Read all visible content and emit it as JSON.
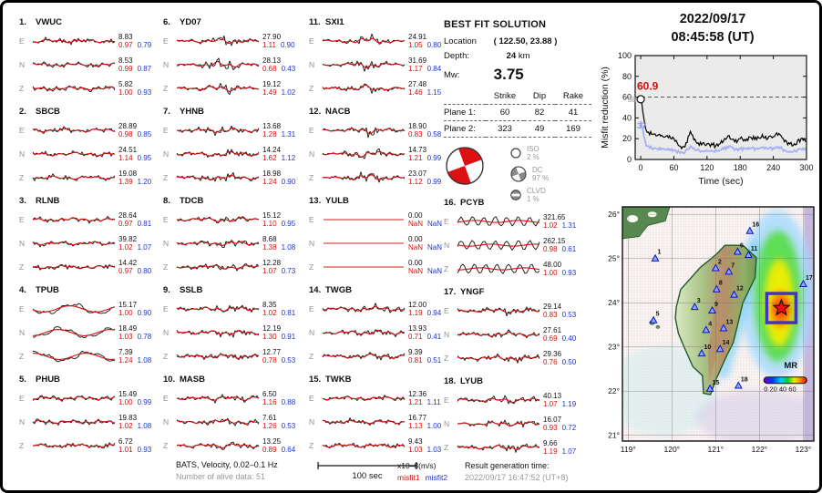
{
  "header": {
    "date": "2022/09/17",
    "time": "08:45:58  (UT)"
  },
  "stations": [
    {
      "num": "1.",
      "name": "VWUC",
      "channels": [
        {
          "ch": "E",
          "amp": "8.83",
          "m1": "0.97",
          "m2": "0.79"
        },
        {
          "ch": "N",
          "amp": "8.53",
          "m1": "0.99",
          "m2": "0.87"
        },
        {
          "ch": "Z",
          "amp": "5.82",
          "m1": "1.00",
          "m2": "0.93"
        }
      ]
    },
    {
      "num": "2.",
      "name": "SBCB",
      "channels": [
        {
          "ch": "E",
          "amp": "28.89",
          "m1": "0.98",
          "m2": "0.85"
        },
        {
          "ch": "N",
          "amp": "24.51",
          "m1": "1.14",
          "m2": "0.95"
        },
        {
          "ch": "Z",
          "amp": "19.08",
          "m1": "1.39",
          "m2": "1.20"
        }
      ]
    },
    {
      "num": "3.",
      "name": "RLNB",
      "channels": [
        {
          "ch": "E",
          "amp": "28.64",
          "m1": "0.97",
          "m2": "0.81"
        },
        {
          "ch": "N",
          "amp": "39.82",
          "m1": "1.02",
          "m2": "1.07"
        },
        {
          "ch": "Z",
          "amp": "14.42",
          "m1": "0.97",
          "m2": "0.80"
        }
      ]
    },
    {
      "num": "4.",
      "name": "TPUB",
      "channels": [
        {
          "ch": "E",
          "amp": "15.17",
          "m1": "1.00",
          "m2": "0.90"
        },
        {
          "ch": "N",
          "amp": "18.49",
          "m1": "1.03",
          "m2": "0.78"
        },
        {
          "ch": "Z",
          "amp": "7.39",
          "m1": "1.24",
          "m2": "1.08"
        }
      ]
    },
    {
      "num": "5.",
      "name": "PHUB",
      "channels": [
        {
          "ch": "E",
          "amp": "15.49",
          "m1": "1.00",
          "m2": "0.99"
        },
        {
          "ch": "N",
          "amp": "19.83",
          "m1": "1.02",
          "m2": "1.08"
        },
        {
          "ch": "Z",
          "amp": "6.72",
          "m1": "1.01",
          "m2": "0.93"
        }
      ]
    },
    {
      "num": "6.",
      "name": "YD07",
      "channels": [
        {
          "ch": "E",
          "amp": "27.90",
          "m1": "1.11",
          "m2": "0.90"
        },
        {
          "ch": "N",
          "amp": "28.13",
          "m1": "0.68",
          "m2": "0.43"
        },
        {
          "ch": "Z",
          "amp": "19.12",
          "m1": "1.49",
          "m2": "1.02"
        }
      ]
    },
    {
      "num": "7.",
      "name": "YHNB",
      "channels": [
        {
          "ch": "E",
          "amp": "13.68",
          "m1": "1.28",
          "m2": "1.31"
        },
        {
          "ch": "N",
          "amp": "14.24",
          "m1": "1.62",
          "m2": "1.12"
        },
        {
          "ch": "Z",
          "amp": "18.98",
          "m1": "1.24",
          "m2": "0.90"
        }
      ]
    },
    {
      "num": "8.",
      "name": "TDCB",
      "channels": [
        {
          "ch": "E",
          "amp": "15.12",
          "m1": "1.10",
          "m2": "0.95"
        },
        {
          "ch": "N",
          "amp": "8.68",
          "m1": "1.38",
          "m2": "1.08"
        },
        {
          "ch": "Z",
          "amp": "12.28",
          "m1": "1.07",
          "m2": "0.73"
        }
      ]
    },
    {
      "num": "9.",
      "name": "SSLB",
      "channels": [
        {
          "ch": "E",
          "amp": "8.35",
          "m1": "1.02",
          "m2": "0.81"
        },
        {
          "ch": "N",
          "amp": "12.19",
          "m1": "1.30",
          "m2": "0.91"
        },
        {
          "ch": "Z",
          "amp": "12.77",
          "m1": "0.78",
          "m2": "0.53"
        }
      ]
    },
    {
      "num": "10.",
      "name": "MASB",
      "channels": [
        {
          "ch": "E",
          "amp": "6.50",
          "m1": "1.16",
          "m2": "0.88"
        },
        {
          "ch": "N",
          "amp": "7.61",
          "m1": "1.26",
          "m2": "0.53"
        },
        {
          "ch": "Z",
          "amp": "13.25",
          "m1": "0.89",
          "m2": "0.64"
        }
      ]
    },
    {
      "num": "11.",
      "name": "SXI1",
      "channels": [
        {
          "ch": "E",
          "amp": "24.91",
          "m1": "1.05",
          "m2": "0.80"
        },
        {
          "ch": "N",
          "amp": "31.69",
          "m1": "1.17",
          "m2": "0.84"
        },
        {
          "ch": "Z",
          "amp": "27.48",
          "m1": "1.46",
          "m2": "1.15"
        }
      ]
    },
    {
      "num": "12.",
      "name": "NACB",
      "channels": [
        {
          "ch": "E",
          "amp": "18.90",
          "m1": "0.83",
          "m2": "0.58"
        },
        {
          "ch": "N",
          "amp": "14.73",
          "m1": "1.21",
          "m2": "0.99"
        },
        {
          "ch": "Z",
          "amp": "23.07",
          "m1": "1.12",
          "m2": "0.99"
        }
      ]
    },
    {
      "num": "13.",
      "name": "YULB",
      "channels": [
        {
          "ch": "E",
          "amp": "0.00",
          "m1": "NaN",
          "m2": "NaN"
        },
        {
          "ch": "N",
          "amp": "0.00",
          "m1": "NaN",
          "m2": "NaN"
        },
        {
          "ch": "Z",
          "amp": "0.00",
          "m1": "NaN",
          "m2": "NaN"
        }
      ]
    },
    {
      "num": "14.",
      "name": "TWGB",
      "channels": [
        {
          "ch": "E",
          "amp": "12.00",
          "m1": "1.19",
          "m2": "0.94"
        },
        {
          "ch": "N",
          "amp": "13.93",
          "m1": "0.71",
          "m2": "0.41"
        },
        {
          "ch": "Z",
          "amp": "9.39",
          "m1": "0.81",
          "m2": "0.51"
        }
      ]
    },
    {
      "num": "15.",
      "name": "TWKB",
      "channels": [
        {
          "ch": "E",
          "amp": "12.36",
          "m1": "1.21",
          "m2": "1.11"
        },
        {
          "ch": "N",
          "amp": "16.77",
          "m1": "1.13",
          "m2": "1.00"
        },
        {
          "ch": "Z",
          "amp": "9.43",
          "m1": "1.03",
          "m2": "1.03"
        }
      ]
    },
    {
      "num": "16.",
      "name": "PCYB",
      "channels": [
        {
          "ch": "E",
          "amp": "321.65",
          "m1": "1.02",
          "m2": "1.31"
        },
        {
          "ch": "N",
          "amp": "262.15",
          "m1": "0.98",
          "m2": "0.61"
        },
        {
          "ch": "Z",
          "amp": "48.00",
          "m1": "1.00",
          "m2": "0.93"
        }
      ]
    },
    {
      "num": "17.",
      "name": "YNGF",
      "channels": [
        {
          "ch": "E",
          "amp": "29.14",
          "m1": "0.83",
          "m2": "0.53"
        },
        {
          "ch": "N",
          "amp": "27.61",
          "m1": "0.69",
          "m2": "0.40"
        },
        {
          "ch": "Z",
          "amp": "29.36",
          "m1": "0.76",
          "m2": "0.50"
        }
      ]
    },
    {
      "num": "18.",
      "name": "LYUB",
      "channels": [
        {
          "ch": "E",
          "amp": "40.13",
          "m1": "1.07",
          "m2": "1.19"
        },
        {
          "ch": "N",
          "amp": "16.07",
          "m1": "0.93",
          "m2": "0.72"
        },
        {
          "ch": "Z",
          "amp": "9.66",
          "m1": "1.19",
          "m2": "1.07"
        }
      ]
    }
  ],
  "best_fit": {
    "title": "BEST FIT SOLUTION",
    "location_label": "Location",
    "location_value": "( 122.50,  23.88 )",
    "depth_label": "Depth:",
    "depth_value": "24",
    "depth_unit": "km",
    "mw_label": "Mw:",
    "mw_value": "3.75",
    "table_headers": {
      "strike": "Strike",
      "dip": "Dip",
      "rake": "Rake"
    },
    "planes": [
      {
        "label": "Plane 1:",
        "strike": "60",
        "dip": "82",
        "rake": "41"
      },
      {
        "label": "Plane 2:",
        "strike": "323",
        "dip": "49",
        "rake": "169"
      }
    ],
    "decomposition": [
      {
        "name": "ISO",
        "pct": "2 %"
      },
      {
        "name": "DC",
        "pct": "97 %"
      },
      {
        "name": "CLVD",
        "pct": "1 %"
      }
    ]
  },
  "chart_data": {
    "type": "line",
    "title": "",
    "xlabel": "Time (sec)",
    "ylabel": "Misfit reduction (%)",
    "xlim": [
      -10,
      300
    ],
    "ylim": [
      0,
      100
    ],
    "yticks": [
      0,
      20,
      40,
      60,
      80,
      100
    ],
    "xticks": [
      0,
      60,
      120,
      180,
      240,
      300
    ],
    "dashed_line_y": 60,
    "x": [
      0,
      10,
      20,
      30,
      40,
      50,
      60,
      70,
      80,
      90,
      100,
      110,
      120,
      130,
      140,
      150,
      160,
      170,
      180,
      190,
      200,
      210,
      220,
      230,
      240,
      250,
      260,
      270,
      280,
      290,
      300
    ],
    "series": [
      {
        "name": "misfit1",
        "color": "#000000",
        "values": [
          58,
          28,
          24,
          23,
          22,
          21,
          20,
          13,
          12,
          27,
          17,
          14,
          15,
          14,
          13,
          18,
          23,
          17,
          20,
          18,
          21,
          19,
          24,
          20,
          22,
          25,
          17,
          15,
          14,
          20,
          17
        ]
      },
      {
        "name": "misfit2",
        "color": "#a9b0f2",
        "values": [
          37,
          13,
          11,
          10,
          10,
          9,
          9,
          7,
          7,
          13,
          9,
          8,
          8,
          8,
          8,
          10,
          13,
          9,
          10,
          10,
          11,
          10,
          12,
          10,
          11,
          12,
          9,
          8,
          8,
          10,
          9
        ]
      }
    ],
    "annotations": {
      "peak": "60.9",
      "black_start": "58",
      "blue_start": "37"
    }
  },
  "map": {
    "lat_labels": [
      {
        "v": 26,
        "t": "26°"
      },
      {
        "v": 25,
        "t": "25°"
      },
      {
        "v": 24,
        "t": "24°"
      },
      {
        "v": 23,
        "t": "23°"
      },
      {
        "v": 22,
        "t": "22°"
      },
      {
        "v": 21,
        "t": "21°"
      }
    ],
    "lon_labels": [
      {
        "v": 119,
        "t": "119°"
      },
      {
        "v": 120,
        "t": "120°"
      },
      {
        "v": 121,
        "t": "121°"
      },
      {
        "v": 122,
        "t": "122°"
      },
      {
        "v": 123,
        "t": "123°"
      }
    ],
    "stations": [
      {
        "n": "1",
        "lon": 119.62,
        "lat": 25.0
      },
      {
        "n": "2",
        "lon": 121.0,
        "lat": 24.78
      },
      {
        "n": "3",
        "lon": 120.52,
        "lat": 23.9
      },
      {
        "n": "4",
        "lon": 120.78,
        "lat": 23.38
      },
      {
        "n": "5",
        "lon": 119.58,
        "lat": 23.6
      },
      {
        "n": "6",
        "lon": 121.5,
        "lat": 25.15
      },
      {
        "n": "7",
        "lon": 121.3,
        "lat": 24.7
      },
      {
        "n": "8",
        "lon": 121.02,
        "lat": 24.3
      },
      {
        "n": "9",
        "lon": 120.92,
        "lat": 23.82
      },
      {
        "n": "10",
        "lon": 120.68,
        "lat": 22.85
      },
      {
        "n": "11",
        "lon": 121.75,
        "lat": 25.08
      },
      {
        "n": "12",
        "lon": 121.42,
        "lat": 24.18
      },
      {
        "n": "13",
        "lon": 121.18,
        "lat": 23.42
      },
      {
        "n": "14",
        "lon": 121.1,
        "lat": 22.95
      },
      {
        "n": "15",
        "lon": 120.87,
        "lat": 22.05
      },
      {
        "n": "16",
        "lon": 121.78,
        "lat": 25.62
      },
      {
        "n": "17",
        "lon": 123.0,
        "lat": 24.42
      },
      {
        "n": "18",
        "lon": 121.52,
        "lat": 22.12
      }
    ],
    "epicenter": {
      "lon": 122.5,
      "lat": 23.88
    },
    "legend": {
      "title": "MR",
      "ticks": "0 20 40 60"
    }
  },
  "footer": {
    "info_line1": "BATS, Velocity, 0.02–0.1 Hz",
    "info_line2": "Number of alive data: 51",
    "scalebar_label": "100 sec",
    "amp_units": "x10–8(m/s)",
    "misfit1_label": "misfit1",
    "misfit2_label": "misfit2",
    "result_label": "Result generation time:",
    "result_time": "2022/09/17 16:47:52 (UT+8)"
  },
  "colors": {
    "misfit1": "#d30f0f",
    "misfit2": "#2233cc",
    "beachball_red": "#dd1111",
    "station_marker": "#2222dd"
  }
}
